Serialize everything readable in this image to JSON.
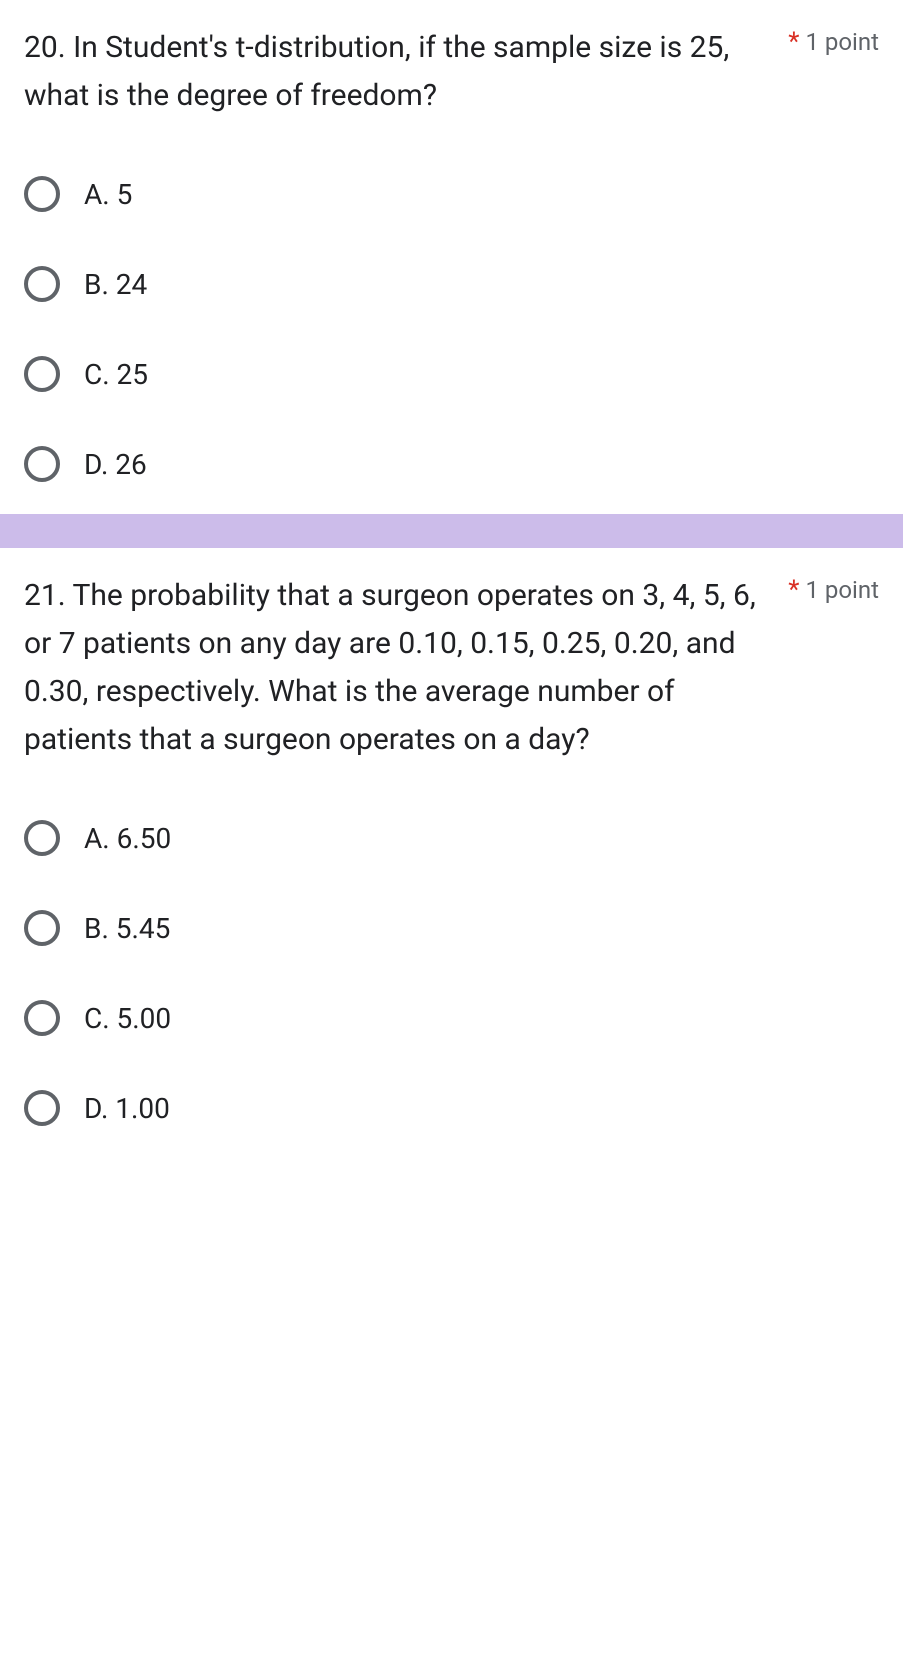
{
  "colors": {
    "text_primary": "#202124",
    "text_secondary": "#5f6368",
    "required": "#d93025",
    "divider": "#ccbcea",
    "radio_border": "#5f6368",
    "background": "#ffffff"
  },
  "typography": {
    "question_fontsize": 30,
    "option_fontsize": 28,
    "points_fontsize": 24
  },
  "questions": [
    {
      "text": "20. In Student's t-distribution, if the sample size is 25, what is the degree of freedom?",
      "required_marker": "*",
      "points": "1 point",
      "options": [
        {
          "label": "A. 5"
        },
        {
          "label": "B. 24"
        },
        {
          "label": "C. 25"
        },
        {
          "label": "D. 26"
        }
      ]
    },
    {
      "text": "21. The probability that a surgeon operates on 3, 4, 5, 6, or 7 patients on any day are 0.10, 0.15, 0.25, 0.20, and 0.30, respectively. What is the average number of patients that a surgeon operates on a day?",
      "required_marker": "*",
      "points": "1 point",
      "options": [
        {
          "label": "A. 6.50"
        },
        {
          "label": "B. 5.45"
        },
        {
          "label": "C. 5.00"
        },
        {
          "label": "D. 1.00"
        }
      ]
    }
  ]
}
